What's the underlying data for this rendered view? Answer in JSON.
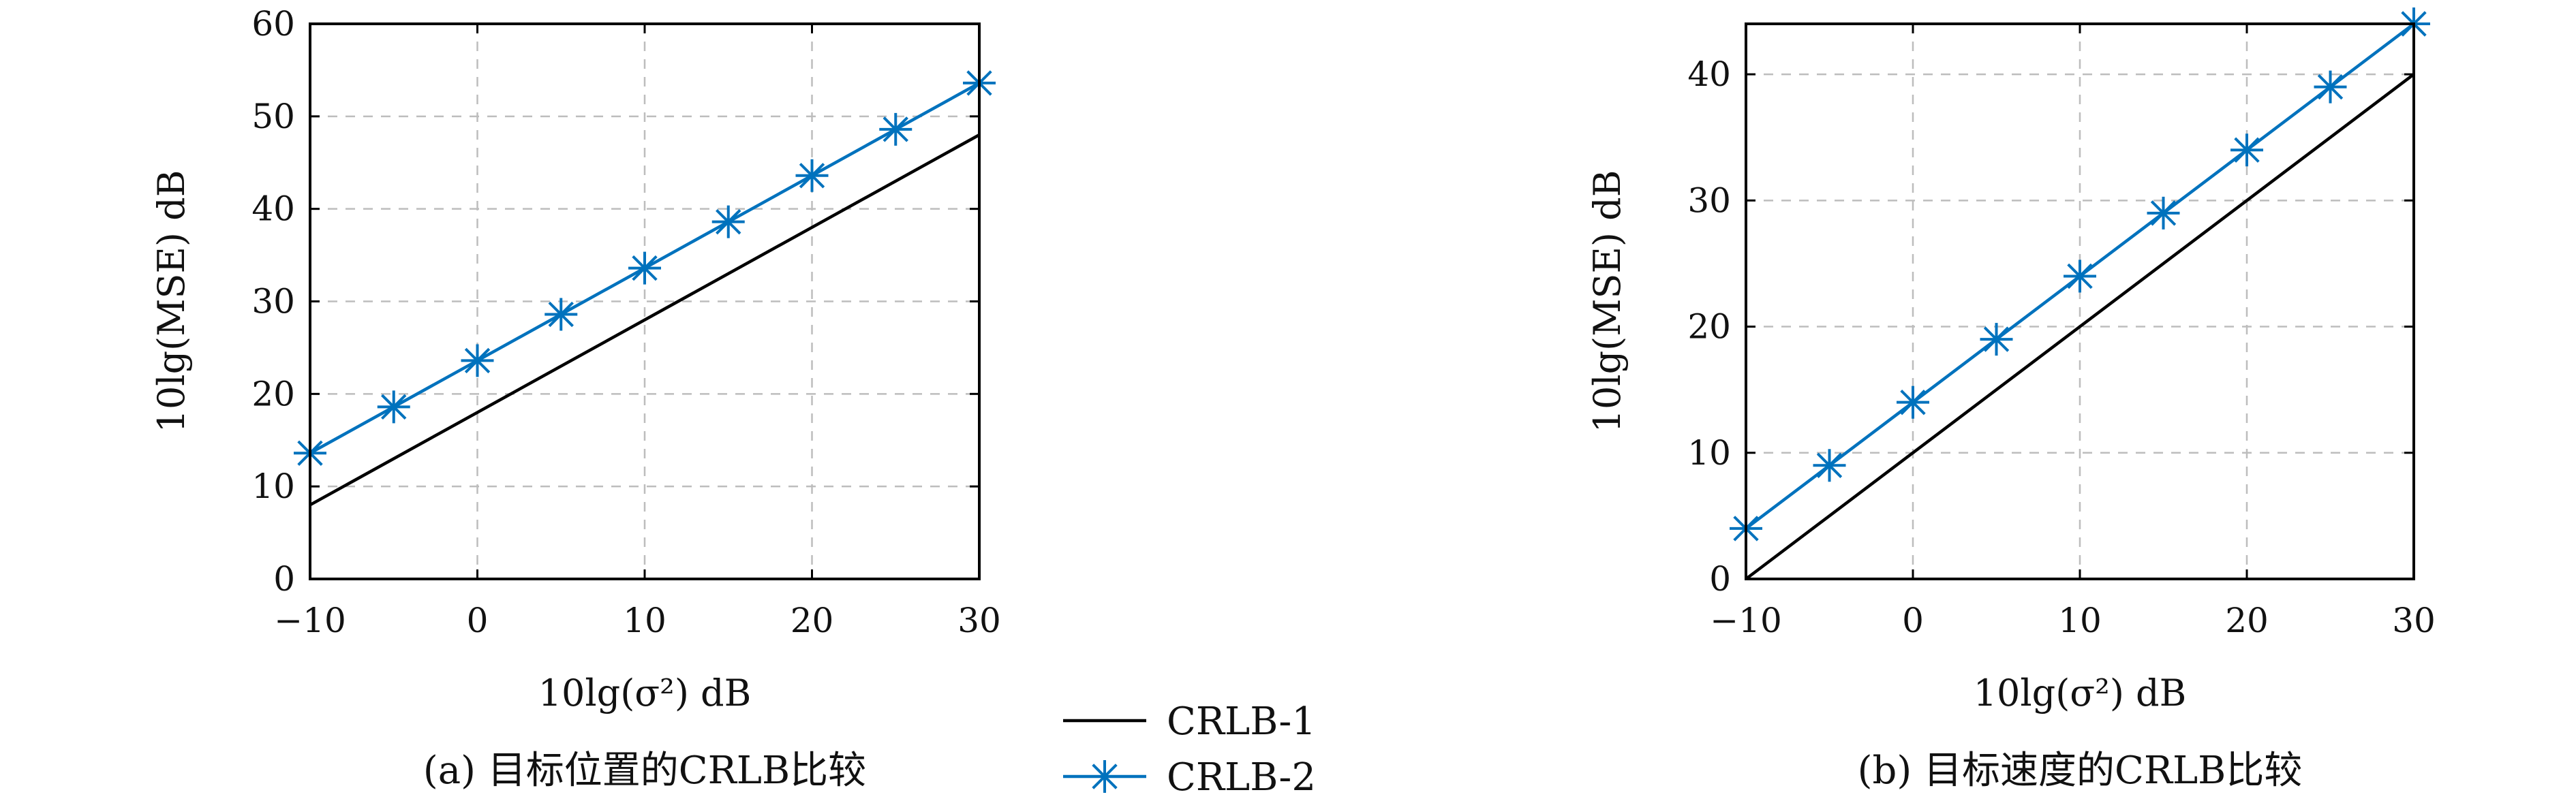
{
  "colors": {
    "crlb1": "#000000",
    "crlb2": "#0072BD",
    "grid": "#bdbdbd",
    "frame": "#000000"
  },
  "legend": {
    "placement": "bottom-center",
    "items": [
      "CRLB-1",
      "CRLB-2"
    ]
  },
  "chart_data": [
    {
      "type": "line",
      "caption": "(a) 目标位置的CRLB比较",
      "xlabel": "10lg(σ²) dB",
      "ylabel": "10lg(MSE) dB",
      "xlim": [
        -10,
        30
      ],
      "ylim": [
        0,
        60
      ],
      "xticks": [
        -10,
        0,
        10,
        20,
        30
      ],
      "yticks": [
        0,
        10,
        20,
        30,
        40,
        50,
        60
      ],
      "xtick_labels": [
        "−10",
        "0",
        "10",
        "20",
        "30"
      ],
      "ytick_labels": [
        "0",
        "10",
        "20",
        "30",
        "40",
        "50",
        "60"
      ],
      "grid": true,
      "series": [
        {
          "name": "CRLB-1",
          "marker": "none",
          "x": [
            -10,
            30
          ],
          "values": [
            8,
            48
          ]
        },
        {
          "name": "CRLB-2",
          "marker": "asterisk",
          "x": [
            -10,
            -5,
            0,
            5,
            10,
            15,
            20,
            25,
            30
          ],
          "values": [
            13.6,
            18.6,
            23.6,
            28.6,
            33.6,
            38.6,
            43.6,
            48.6,
            53.6
          ]
        }
      ]
    },
    {
      "type": "line",
      "caption": "(b) 目标速度的CRLB比较",
      "xlabel": "10lg(σ²) dB",
      "ylabel": "10lg(MSE) dB",
      "xlim": [
        -10,
        30
      ],
      "ylim": [
        0,
        44
      ],
      "xticks": [
        -10,
        0,
        10,
        20,
        30
      ],
      "yticks": [
        0,
        10,
        20,
        30,
        40
      ],
      "xtick_labels": [
        "−10",
        "0",
        "10",
        "20",
        "30"
      ],
      "ytick_labels": [
        "0",
        "10",
        "20",
        "30",
        "40"
      ],
      "grid": true,
      "series": [
        {
          "name": "CRLB-1",
          "marker": "none",
          "x": [
            -10,
            30
          ],
          "values": [
            0,
            40
          ]
        },
        {
          "name": "CRLB-2",
          "marker": "asterisk",
          "x": [
            -10,
            -5,
            0,
            5,
            10,
            15,
            20,
            25,
            30
          ],
          "values": [
            4,
            9,
            14,
            19,
            24,
            29,
            34,
            39,
            44
          ]
        }
      ]
    }
  ]
}
